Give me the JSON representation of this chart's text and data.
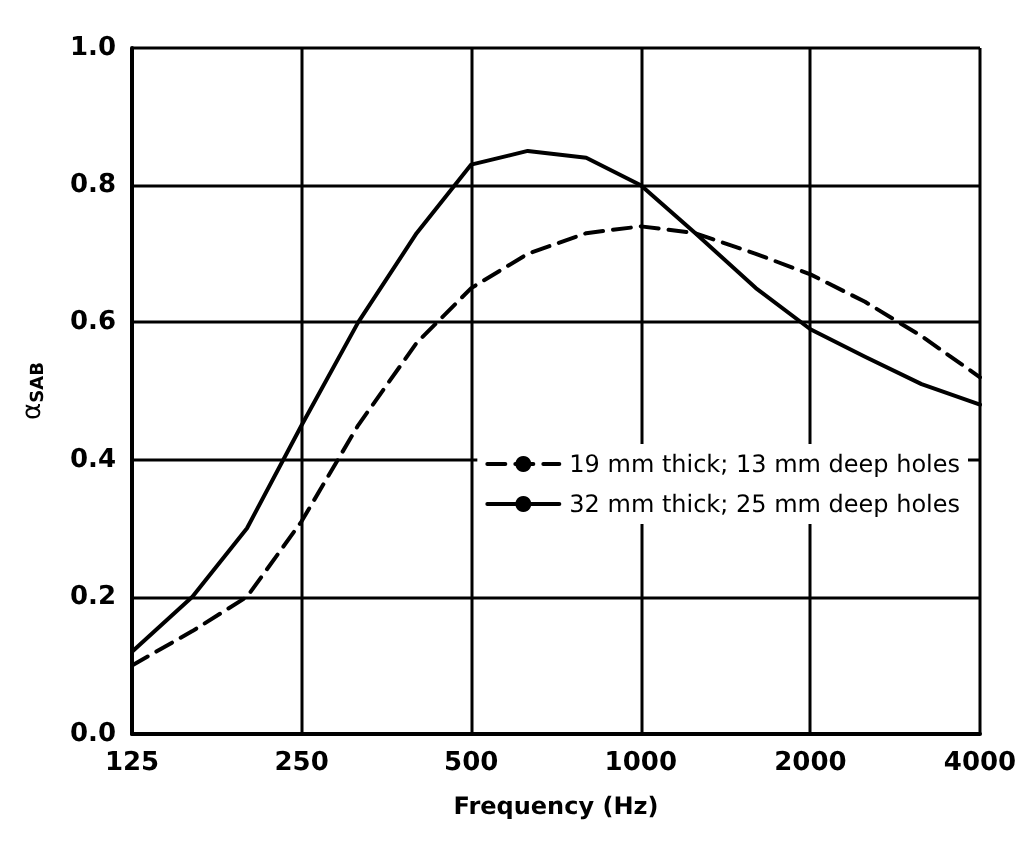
{
  "chart_data": {
    "type": "line",
    "xlabel": "Frequency (Hz)",
    "ylabel": "α$_{SAB}$",
    "log": "x",
    "xlim": [
      125,
      4000
    ],
    "xticks": [
      125,
      250,
      500,
      1000,
      2000,
      4000
    ],
    "ylim": [
      0,
      1
    ],
    "yticks": [
      {
        "value": 0,
        "label": "0.0"
      },
      {
        "value": 0.2,
        "label": "0.2"
      },
      {
        "value": 0.4,
        "label": "0.4"
      },
      {
        "value": 0.6,
        "label": "0.6"
      },
      {
        "value": 0.8,
        "label": "0.8"
      },
      {
        "value": 1,
        "label": "1.0"
      }
    ],
    "grid": true,
    "legend": "right",
    "marker": "none",
    "x": [
      125,
      160,
      200,
      250,
      315,
      400,
      500,
      630,
      800,
      1000,
      1250,
      1600,
      2000,
      2500,
      3150,
      4000
    ],
    "series": [
      {
        "name": "19 mm thick; 13 mm deep holes",
        "color": "#000000",
        "line_style": "dashed",
        "values": [
          0.1,
          0.15,
          0.2,
          0.31,
          0.45,
          0.57,
          0.65,
          0.7,
          0.73,
          0.74,
          0.73,
          0.7,
          0.67,
          0.63,
          0.58,
          0.52
        ]
      },
      {
        "name": "32 mm thick; 25 mm deep holes",
        "color": "#000000",
        "line_style": "solid",
        "values": [
          0.12,
          0.2,
          0.3,
          0.45,
          0.6,
          0.73,
          0.83,
          0.85,
          0.84,
          0.8,
          0.73,
          0.65,
          0.59,
          0.55,
          0.51,
          0.48
        ]
      }
    ]
  }
}
